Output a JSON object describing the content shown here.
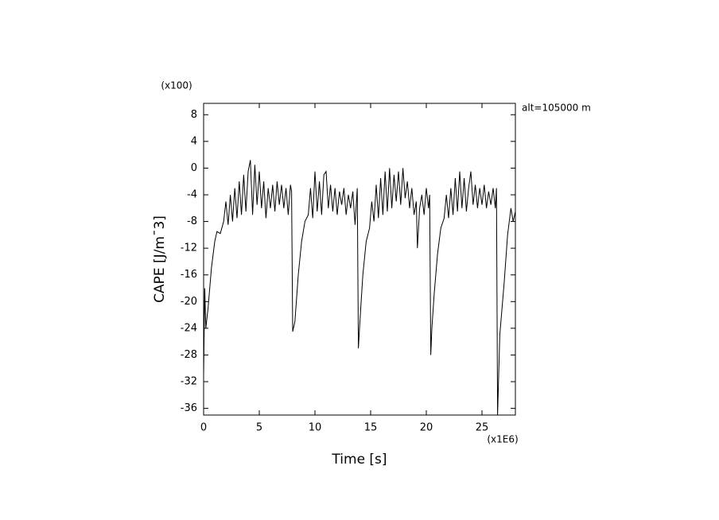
{
  "chart_data": {
    "type": "line",
    "xlabel": "Time [s]",
    "ylabel": "CAPE [J/m¯3]",
    "x_multiplier_label": "(x1E6)",
    "y_multiplier_label": "(x100)",
    "annotation": "alt=105000 m",
    "xlim": [
      0,
      28
    ],
    "xticks": [
      0,
      5,
      10,
      15,
      20,
      25
    ],
    "ylim": [
      -37,
      9.7
    ],
    "yticks": [
      -36,
      -32,
      -28,
      -24,
      -20,
      -16,
      -12,
      -8,
      -4,
      0,
      4,
      8
    ],
    "x": [
      0,
      0.1,
      0.2,
      0.4,
      0.7,
      1.0,
      1.2,
      1.5,
      1.8,
      2.0,
      2.2,
      2.4,
      2.6,
      2.8,
      3.0,
      3.2,
      3.4,
      3.6,
      3.8,
      4.0,
      4.2,
      4.4,
      4.6,
      4.8,
      5.0,
      5.2,
      5.4,
      5.6,
      5.8,
      6.0,
      6.2,
      6.4,
      6.6,
      6.8,
      7.0,
      7.2,
      7.4,
      7.6,
      7.8,
      7.9,
      8.0,
      8.2,
      8.5,
      8.8,
      9.1,
      9.4,
      9.6,
      9.8,
      10.0,
      10.2,
      10.4,
      10.6,
      10.8,
      11.0,
      11.2,
      11.4,
      11.6,
      11.8,
      12.0,
      12.2,
      12.4,
      12.6,
      12.8,
      13.0,
      13.2,
      13.4,
      13.6,
      13.8,
      13.9,
      14.0,
      14.3,
      14.6,
      14.9,
      15.1,
      15.3,
      15.5,
      15.7,
      15.9,
      16.1,
      16.3,
      16.5,
      16.7,
      16.9,
      17.1,
      17.3,
      17.5,
      17.7,
      17.9,
      18.1,
      18.3,
      18.5,
      18.7,
      18.9,
      19.1,
      19.2,
      19.4,
      19.6,
      19.8,
      20.0,
      20.2,
      20.3,
      20.4,
      20.5,
      20.7,
      21.0,
      21.3,
      21.6,
      21.8,
      22.0,
      22.2,
      22.4,
      22.6,
      22.8,
      23.0,
      23.2,
      23.4,
      23.6,
      23.8,
      24.0,
      24.2,
      24.4,
      24.6,
      24.8,
      25.0,
      25.2,
      25.4,
      25.6,
      25.8,
      26.0,
      26.2,
      26.3,
      26.4,
      26.6,
      27.0,
      27.3,
      27.6,
      27.8,
      28.0
    ],
    "series": [
      {
        "color": "#000000",
        "values": [
          -31,
          -18,
          -24,
          -21,
          -15,
          -11,
          -9.5,
          -9.8,
          -8,
          -5,
          -8.5,
          -4,
          -8,
          -3,
          -7.5,
          -2,
          -7,
          -1,
          -6.5,
          -0.5,
          1.2,
          -7,
          0.5,
          -5.5,
          -0.5,
          -6,
          -2,
          -7.5,
          -3,
          -6,
          -2.5,
          -6.5,
          -2,
          -5.5,
          -2.5,
          -6,
          -3,
          -7,
          -2.5,
          -3.5,
          -24.5,
          -23,
          -16,
          -11,
          -8,
          -7,
          -3,
          -7.5,
          -0.5,
          -6.5,
          -2,
          -7,
          -1,
          -0.5,
          -6,
          -2.5,
          -6.5,
          -3,
          -7,
          -3.5,
          -5.5,
          -3,
          -7,
          -4,
          -6,
          -3.5,
          -8.5,
          -3,
          -27,
          -24,
          -16,
          -11,
          -9,
          -5,
          -8,
          -2.5,
          -7.5,
          -1.5,
          -7,
          -0.5,
          -6.5,
          0,
          -6,
          -1,
          -5,
          -0.5,
          -5.5,
          0,
          -4.5,
          -2,
          -6,
          -3,
          -7,
          -5,
          -12,
          -6,
          -4,
          -7,
          -3,
          -6,
          -4,
          -28,
          -24,
          -19,
          -13,
          -9,
          -7.5,
          -4,
          -7.5,
          -3,
          -7,
          -1.5,
          -6.5,
          -0.5,
          -6,
          -1.5,
          -6.5,
          -3,
          -0.5,
          -5.5,
          -2.5,
          -6,
          -3,
          -5.5,
          -2.5,
          -6,
          -3.5,
          -5.5,
          -3,
          -6,
          -3,
          -37,
          -25,
          -17,
          -10,
          -6,
          -8,
          -6.5
        ]
      }
    ]
  }
}
